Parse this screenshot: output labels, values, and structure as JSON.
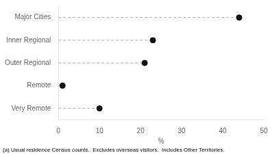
{
  "chart_data": {
    "type": "lollipop",
    "orientation": "horizontal",
    "categories": [
      "Major Cities",
      "Inner Regional",
      "Outer Regional",
      "Remote",
      "Very Remote"
    ],
    "values": [
      44,
      23,
      21,
      1,
      10
    ],
    "xlim": [
      0,
      50
    ],
    "xticks": [
      0,
      10,
      20,
      30,
      40,
      50
    ],
    "xlabel": "%",
    "annotation": "(a) Usual residence Census counts.  Excludes overseas visitors.  Includes Other Territories.",
    "color": "#111111",
    "line_style": "dashed",
    "marker": "circle",
    "grid": false
  }
}
